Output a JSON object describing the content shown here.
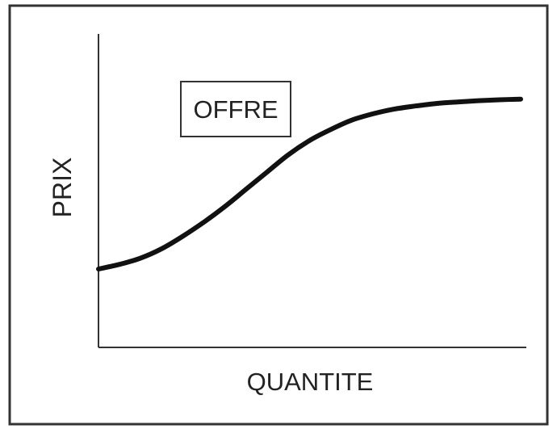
{
  "chart_data": {
    "type": "line",
    "xlabel": "QUANTITE",
    "ylabel": "PRIX",
    "annotation": "OFFRE",
    "grid": false,
    "ticks": false,
    "series": [
      {
        "x": [
          0,
          5,
          10,
          15,
          20,
          25,
          30,
          35,
          40,
          45,
          50,
          55,
          60,
          65,
          70,
          75,
          80,
          85,
          90,
          95,
          100
        ],
        "y": [
          25,
          26.5,
          28.5,
          31.5,
          35.5,
          40,
          45,
          50.5,
          56,
          61.5,
          66,
          69.5,
          72.5,
          74.5,
          76,
          77,
          77.8,
          78.3,
          78.7,
          79,
          79.2
        ]
      }
    ],
    "xlim": [
      0,
      100
    ],
    "ylim": [
      0,
      100
    ]
  }
}
